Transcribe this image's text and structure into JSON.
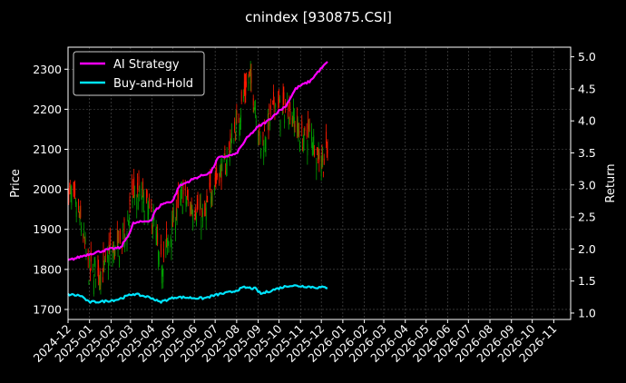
{
  "chart_data": {
    "type": "line",
    "title": "cnindex [930875.CSI]",
    "ylabel": "Price",
    "y2label": "Return",
    "ylim": [
      1675,
      2355
    ],
    "y2lim": [
      0.9,
      5.15
    ],
    "yticks": [
      1700,
      1800,
      1900,
      2000,
      2100,
      2200,
      2300
    ],
    "y2ticks": [
      "1.0",
      "1.5",
      "2.0",
      "2.5",
      "3.0",
      "3.5",
      "4.0",
      "4.5",
      "5.0"
    ],
    "xticks": [
      "2024-12",
      "2025-01",
      "2025-02",
      "2025-03",
      "2025-04",
      "2025-05",
      "2025-06",
      "2025-07",
      "2025-08",
      "2025-09",
      "2025-10",
      "2025-11",
      "2025-12",
      "2026-01",
      "2026-02",
      "2026-03",
      "2026-04",
      "2026-05",
      "2026-06",
      "2026-07",
      "2026-08",
      "2026-09",
      "2026-10",
      "2026-11"
    ],
    "grid": true,
    "legend_position": "top-left",
    "colors": {
      "up": "#00a000",
      "down": "#ff1a00",
      "strategy": "#ff00ff",
      "buyhold": "#00e5ff",
      "background": "#000000",
      "grid": "#555555"
    },
    "candlestick": {
      "name": "Price",
      "anchors": [
        [
          "2024-12-01",
          2000
        ],
        [
          "2024-12-10",
          1965
        ],
        [
          "2024-12-20",
          1915
        ],
        [
          "2024-12-31",
          1795
        ],
        [
          "2025-01-10",
          1800
        ],
        [
          "2025-01-20",
          1790
        ],
        [
          "2025-01-31",
          1845
        ],
        [
          "2025-02-10",
          1850
        ],
        [
          "2025-02-20",
          1875
        ],
        [
          "2025-03-05",
          1990
        ],
        [
          "2025-03-15",
          1985
        ],
        [
          "2025-03-25",
          1955
        ],
        [
          "2025-04-05",
          1915
        ],
        [
          "2025-04-12",
          1800
        ],
        [
          "2025-04-25",
          1870
        ],
        [
          "2025-05-05",
          1940
        ],
        [
          "2025-05-15",
          1985
        ],
        [
          "2025-05-25",
          1960
        ],
        [
          "2025-06-05",
          1955
        ],
        [
          "2025-06-15",
          1920
        ],
        [
          "2025-06-25",
          2000
        ],
        [
          "2025-07-05",
          2040
        ],
        [
          "2025-07-15",
          2055
        ],
        [
          "2025-07-25",
          2120
        ],
        [
          "2025-08-05",
          2185
        ],
        [
          "2025-08-12",
          2240
        ],
        [
          "2025-08-20",
          2280
        ],
        [
          "2025-08-28",
          2210
        ],
        [
          "2025-09-05",
          2110
        ],
        [
          "2025-09-15",
          2160
        ],
        [
          "2025-09-25",
          2215
        ],
        [
          "2025-10-05",
          2195
        ],
        [
          "2025-10-15",
          2210
        ],
        [
          "2025-10-25",
          2165
        ],
        [
          "2025-11-05",
          2120
        ],
        [
          "2025-11-15",
          2150
        ],
        [
          "2025-11-25",
          2090
        ],
        [
          "2025-12-05",
          2070
        ],
        [
          "2025-12-10",
          2100
        ]
      ]
    },
    "series": [
      {
        "name": "AI Strategy",
        "axis": "right",
        "x": [
          "2024-12-01",
          "2024-12-31",
          "2025-01-31",
          "2025-02-15",
          "2025-03-01",
          "2025-03-05",
          "2025-03-31",
          "2025-04-06",
          "2025-04-15",
          "2025-05-01",
          "2025-05-10",
          "2025-06-01",
          "2025-06-25",
          "2025-07-05",
          "2025-07-31",
          "2025-08-15",
          "2025-08-31",
          "2025-09-15",
          "2025-09-30",
          "2025-10-10",
          "2025-10-25",
          "2025-11-01",
          "2025-11-15",
          "2025-11-25",
          "2025-12-10"
        ],
        "values": [
          1.82,
          1.92,
          2.0,
          2.02,
          2.28,
          2.4,
          2.45,
          2.6,
          2.7,
          2.75,
          2.98,
          3.1,
          3.2,
          3.42,
          3.48,
          3.72,
          3.9,
          4.0,
          4.15,
          4.22,
          4.5,
          4.55,
          4.62,
          4.75,
          4.92
        ]
      },
      {
        "name": "Buy-and-Hold",
        "axis": "right",
        "x": [
          "2024-12-01",
          "2024-12-20",
          "2024-12-31",
          "2025-01-20",
          "2025-02-10",
          "2025-03-05",
          "2025-03-31",
          "2025-04-12",
          "2025-05-05",
          "2025-05-25",
          "2025-06-15",
          "2025-07-05",
          "2025-07-25",
          "2025-08-12",
          "2025-08-28",
          "2025-09-05",
          "2025-09-25",
          "2025-10-15",
          "2025-11-05",
          "2025-11-25",
          "2025-12-10"
        ],
        "values": [
          1.29,
          1.27,
          1.17,
          1.18,
          1.21,
          1.3,
          1.24,
          1.17,
          1.25,
          1.24,
          1.23,
          1.29,
          1.33,
          1.4,
          1.38,
          1.3,
          1.37,
          1.43,
          1.42,
          1.4,
          1.4
        ]
      }
    ]
  }
}
